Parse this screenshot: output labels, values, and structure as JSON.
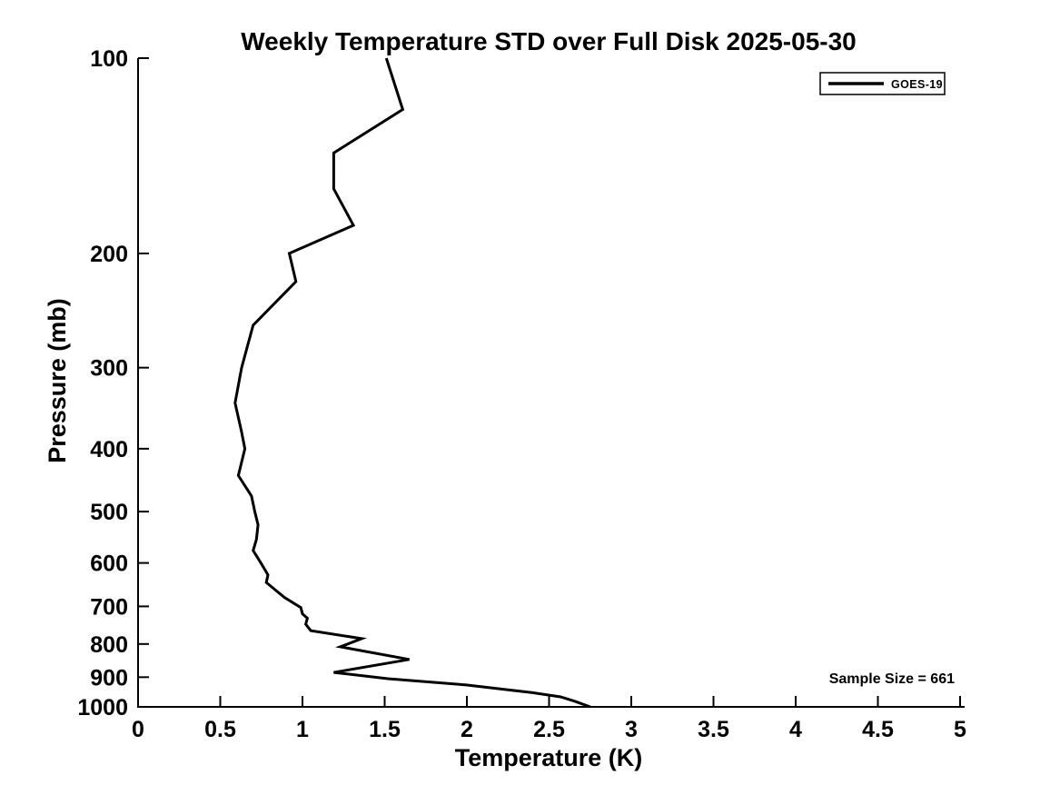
{
  "figure": {
    "title": "Weekly Temperature STD over Full Disk 2025-05-30"
  },
  "legend": {
    "label": "GOES-19",
    "position": "top-right"
  },
  "annotation": {
    "sample_size_label": "Sample Size = 661",
    "sample_size": 661
  },
  "colors": {
    "line": "#000000",
    "axis": "#000000",
    "text": "#000000",
    "background": "#ffffff",
    "legend_border": "#000000"
  },
  "chart_data": {
    "type": "line",
    "title": "Weekly Temperature STD over Full Disk 2025-05-30",
    "xlabel": "Temperature (K)",
    "ylabel": "Pressure (mb)",
    "x_scale": "linear",
    "xlim": [
      0,
      5
    ],
    "x_ticks": [
      0,
      0.5,
      1,
      1.5,
      2,
      2.5,
      3,
      3.5,
      4,
      4.5,
      5
    ],
    "x_tick_labels": [
      "0",
      "0.5",
      "1",
      "1.5",
      "2",
      "2.5",
      "3",
      "3.5",
      "4",
      "4.5",
      "5"
    ],
    "y_scale": "log",
    "y_inverted": true,
    "ylim": [
      100,
      1000
    ],
    "y_ticks": [
      100,
      200,
      300,
      400,
      500,
      600,
      700,
      800,
      900,
      1000
    ],
    "y_tick_labels": [
      "100",
      "200",
      "300",
      "400",
      "500",
      "600",
      "700",
      "800",
      "900",
      "1000"
    ],
    "grid": false,
    "legend_position": "top-right",
    "sample_size": 661,
    "point_format": [
      "temperature_k",
      "pressure_mb"
    ],
    "series": [
      {
        "name": "GOES-19",
        "color": "#000000",
        "line_width": 3,
        "points": [
          [
            1.51,
            100
          ],
          [
            1.61,
            120
          ],
          [
            1.19,
            140
          ],
          [
            1.19,
            159
          ],
          [
            1.31,
            181
          ],
          [
            0.92,
            200
          ],
          [
            0.96,
            221
          ],
          [
            0.7,
            258
          ],
          [
            0.63,
            300
          ],
          [
            0.59,
            340
          ],
          [
            0.63,
            377
          ],
          [
            0.65,
            400
          ],
          [
            0.61,
            440
          ],
          [
            0.69,
            473
          ],
          [
            0.71,
            500
          ],
          [
            0.73,
            524
          ],
          [
            0.72,
            552
          ],
          [
            0.7,
            574
          ],
          [
            0.75,
            602
          ],
          [
            0.79,
            626
          ],
          [
            0.78,
            643
          ],
          [
            0.89,
            678
          ],
          [
            0.99,
            703
          ],
          [
            1.0,
            719
          ],
          [
            1.03,
            730
          ],
          [
            1.02,
            746
          ],
          [
            1.05,
            763
          ],
          [
            1.36,
            785
          ],
          [
            1.23,
            808
          ],
          [
            1.65,
            845
          ],
          [
            1.19,
            885
          ],
          [
            1.52,
            905
          ],
          [
            1.99,
            925
          ],
          [
            2.18,
            937
          ],
          [
            2.4,
            951
          ],
          [
            2.57,
            965
          ],
          [
            2.66,
            981
          ],
          [
            2.75,
            1000
          ]
        ]
      }
    ]
  }
}
